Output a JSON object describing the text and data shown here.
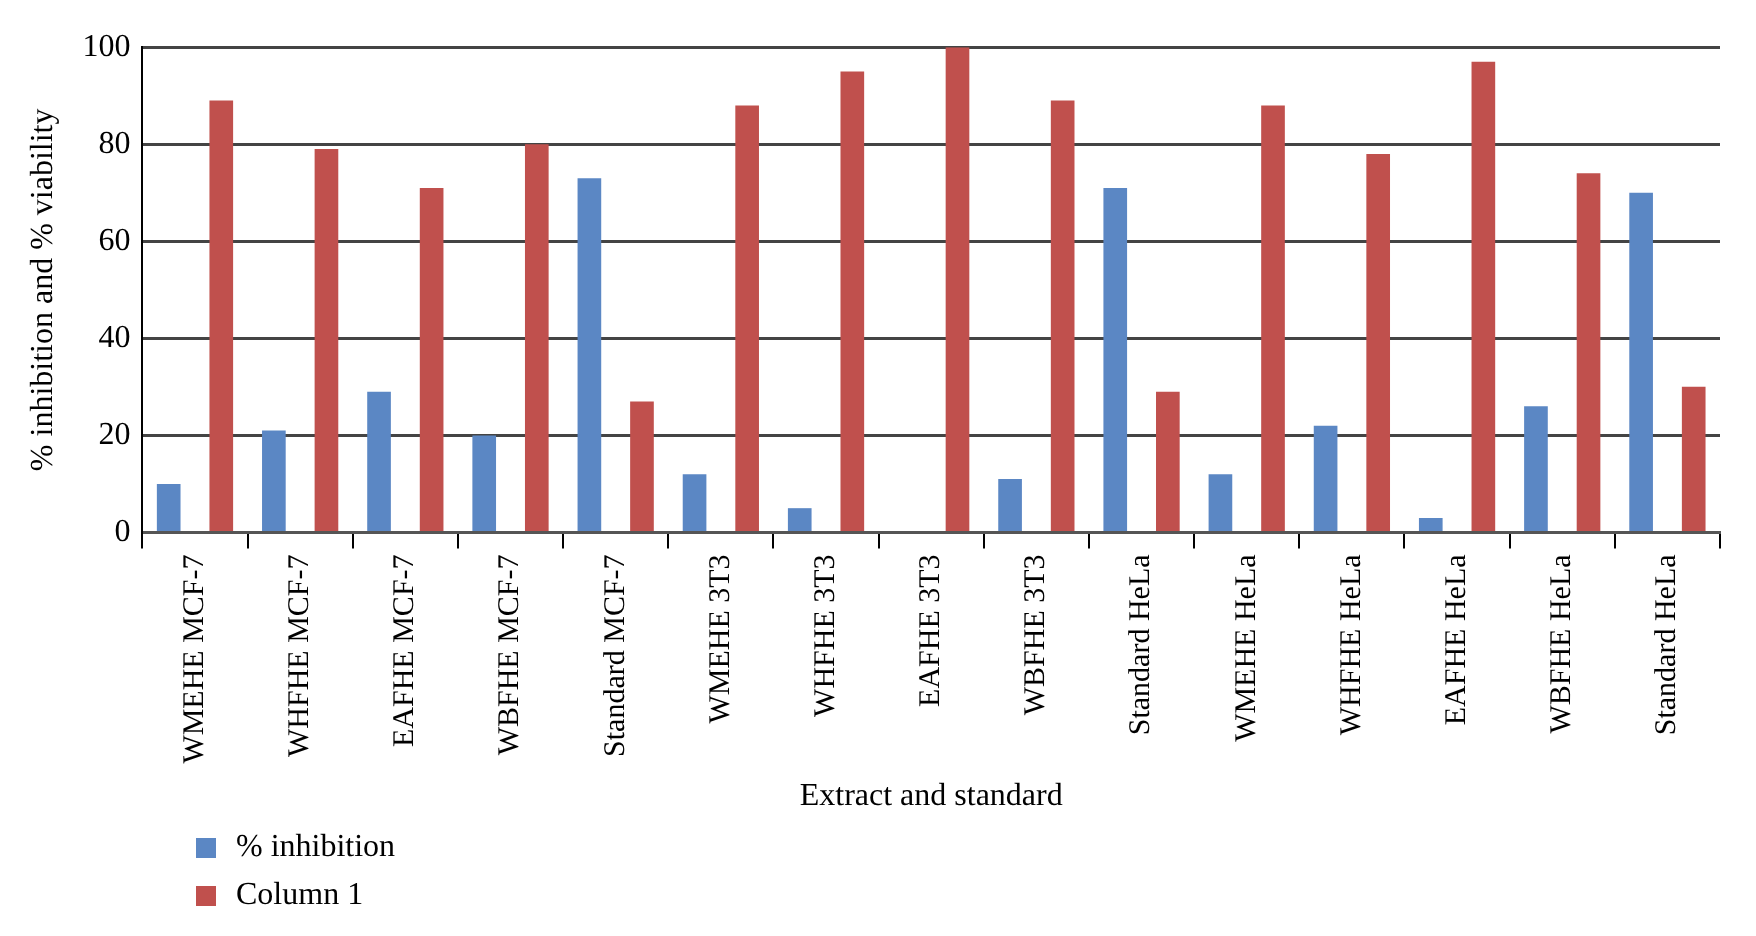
{
  "chart_data": {
    "type": "bar",
    "xlabel": "Extract and standard",
    "ylabel": "% inhibition and % viability",
    "categories": [
      "WMEHE MCF-7",
      "WHFHE MCF-7",
      "EAFHE MCF-7",
      "WBFHE MCF-7",
      "Standard MCF-7",
      "WMEHE 3T3",
      "WHFHE 3T3",
      "EAFHE 3T3",
      "WBFHE 3T3",
      "Standard HeLa",
      "WMEHE HeLa",
      "WHFHE HeLa",
      "EAFHE HeLa",
      "WBFHE HeLa",
      "Standard HeLa"
    ],
    "series": [
      {
        "name": "% inhibition",
        "color": "#5b87c4",
        "values": [
          10,
          21,
          29,
          20,
          73,
          12,
          5,
          0,
          11,
          71,
          12,
          22,
          3,
          26,
          70
        ]
      },
      {
        "name": "Column 1",
        "color": "#c0504d",
        "values": [
          89,
          79,
          71,
          80,
          27,
          88,
          95,
          100,
          89,
          29,
          88,
          78,
          97,
          74,
          30
        ]
      }
    ],
    "ylim": [
      0,
      100
    ],
    "yticks": [
      0,
      20,
      40,
      60,
      80,
      100
    ],
    "grid": "y",
    "legend": "bottom left"
  }
}
